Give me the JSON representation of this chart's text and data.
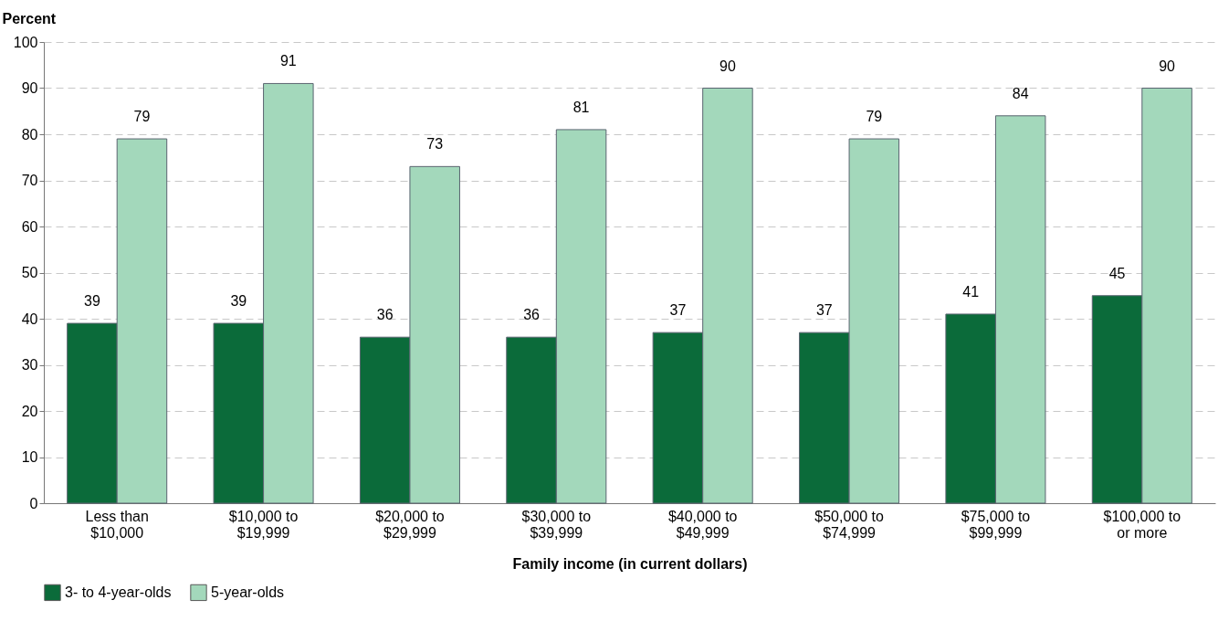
{
  "chart_data": {
    "type": "bar",
    "ylabel": "Percent",
    "xlabel": "Family income (in current dollars)",
    "categories": [
      "Less than $10,000",
      "$10,000 to $19,999",
      "$20,000 to $29,999",
      "$30,000 to $39,999",
      "$40,000 to $49,999",
      "$50,000 to $74,999",
      "$75,000 to $99,999",
      "$100,000 to or more"
    ],
    "series": [
      {
        "name": "3- to 4-year-olds",
        "color": "#0b6b3a",
        "values": [
          39,
          39,
          36,
          36,
          37,
          37,
          41,
          45
        ]
      },
      {
        "name": "5-year-olds",
        "color": "#a3d8bb",
        "values": [
          79,
          91,
          73,
          81,
          90,
          79,
          84,
          90
        ]
      }
    ],
    "ylim": [
      0,
      100
    ],
    "yticks": [
      0,
      10,
      20,
      30,
      40,
      50,
      60,
      70,
      80,
      90,
      100
    ],
    "grid": "y",
    "legend": "bottom",
    "data_labels": true
  }
}
